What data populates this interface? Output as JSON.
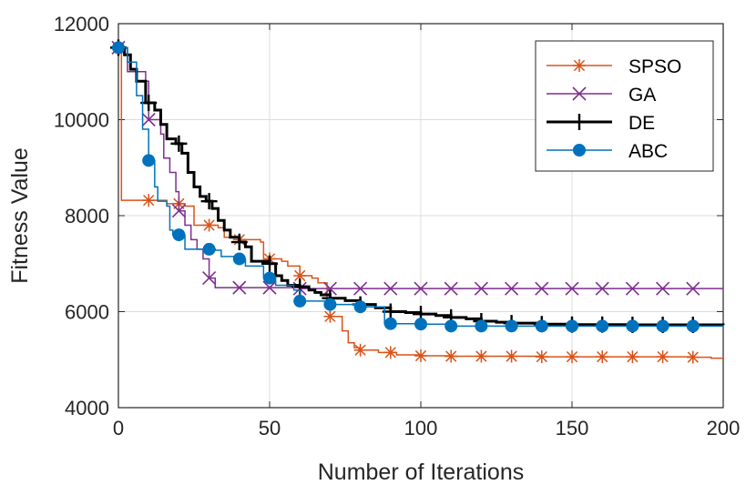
{
  "chart_data": {
    "type": "line",
    "title": "",
    "xlabel": "Number of Iterations",
    "ylabel": "Fitness Value",
    "xlim": [
      0,
      200
    ],
    "ylim": [
      4000,
      12000
    ],
    "xticks": [
      0,
      50,
      100,
      150,
      200
    ],
    "yticks": [
      4000,
      6000,
      8000,
      10000,
      12000
    ],
    "xtick_labels": [
      "0",
      "50",
      "100",
      "150",
      "200"
    ],
    "ytick_labels": [
      "4000",
      "6000",
      "8000",
      "10000",
      "12000"
    ],
    "grid": true,
    "legend_position": "top-right",
    "series": [
      {
        "name": "SPSO",
        "color": "#D95319",
        "marker": "asterisk",
        "step": true,
        "line_width": 1.5,
        "points": [
          [
            0,
            11500
          ],
          [
            1,
            8320
          ],
          [
            15,
            8320
          ],
          [
            16,
            8250
          ],
          [
            22,
            8200
          ],
          [
            25,
            7800
          ],
          [
            33,
            7750
          ],
          [
            35,
            7550
          ],
          [
            40,
            7500
          ],
          [
            47,
            7450
          ],
          [
            48,
            7100
          ],
          [
            54,
            7050
          ],
          [
            56,
            6950
          ],
          [
            60,
            6750
          ],
          [
            64,
            6700
          ],
          [
            66,
            6600
          ],
          [
            69,
            6200
          ],
          [
            70,
            5900
          ],
          [
            74,
            5600
          ],
          [
            76,
            5350
          ],
          [
            78,
            5250
          ],
          [
            80,
            5200
          ],
          [
            86,
            5150
          ],
          [
            92,
            5100
          ],
          [
            100,
            5080
          ],
          [
            110,
            5070
          ],
          [
            140,
            5060
          ],
          [
            190,
            5050
          ],
          [
            196,
            5030
          ],
          [
            200,
            5030
          ]
        ],
        "markers_x": [
          0,
          10,
          20,
          30,
          40,
          50,
          60,
          70,
          80,
          90,
          100,
          110,
          120,
          130,
          140,
          150,
          160,
          170,
          180,
          190
        ]
      },
      {
        "name": "GA",
        "color": "#7E2F8E",
        "marker": "x",
        "step": true,
        "line_width": 1.5,
        "points": [
          [
            0,
            11500
          ],
          [
            3,
            11000
          ],
          [
            9,
            10800
          ],
          [
            10,
            10000
          ],
          [
            14,
            9700
          ],
          [
            15,
            9200
          ],
          [
            17,
            8900
          ],
          [
            19,
            8500
          ],
          [
            20,
            8100
          ],
          [
            22,
            7800
          ],
          [
            24,
            7500
          ],
          [
            26,
            7300
          ],
          [
            28,
            7100
          ],
          [
            30,
            6700
          ],
          [
            32,
            6500
          ],
          [
            60,
            6480
          ],
          [
            200,
            6480
          ]
        ],
        "markers_x": [
          0,
          10,
          20,
          30,
          40,
          50,
          60,
          70,
          80,
          90,
          100,
          110,
          120,
          130,
          140,
          150,
          160,
          170,
          180,
          190
        ]
      },
      {
        "name": "DE",
        "color": "#000000",
        "marker": "plus",
        "step": true,
        "line_width": 3,
        "points": [
          [
            0,
            11500
          ],
          [
            2,
            11350
          ],
          [
            4,
            11050
          ],
          [
            6,
            10800
          ],
          [
            9,
            10350
          ],
          [
            12,
            10200
          ],
          [
            14,
            9900
          ],
          [
            16,
            9600
          ],
          [
            19,
            9500
          ],
          [
            21,
            9300
          ],
          [
            23,
            8900
          ],
          [
            25,
            8600
          ],
          [
            27,
            8400
          ],
          [
            29,
            8300
          ],
          [
            31,
            8150
          ],
          [
            33,
            7900
          ],
          [
            35,
            7700
          ],
          [
            37,
            7550
          ],
          [
            40,
            7450
          ],
          [
            42,
            7350
          ],
          [
            44,
            7050
          ],
          [
            50,
            7000
          ],
          [
            52,
            6750
          ],
          [
            54,
            6650
          ],
          [
            56,
            6550
          ],
          [
            60,
            6520
          ],
          [
            63,
            6450
          ],
          [
            65,
            6400
          ],
          [
            67,
            6350
          ],
          [
            70,
            6280
          ],
          [
            75,
            6230
          ],
          [
            80,
            6150
          ],
          [
            85,
            6080
          ],
          [
            90,
            6000
          ],
          [
            95,
            5980
          ],
          [
            100,
            5950
          ],
          [
            105,
            5920
          ],
          [
            110,
            5880
          ],
          [
            115,
            5850
          ],
          [
            120,
            5800
          ],
          [
            125,
            5780
          ],
          [
            130,
            5760
          ],
          [
            140,
            5740
          ],
          [
            150,
            5730
          ],
          [
            170,
            5725
          ],
          [
            200,
            5720
          ]
        ],
        "markers_x": [
          0,
          10,
          20,
          30,
          40,
          50,
          60,
          70,
          80,
          90,
          100,
          110,
          120,
          130,
          140,
          150,
          160,
          170,
          180,
          190
        ]
      },
      {
        "name": "ABC",
        "color": "#0072BD",
        "marker": "circle",
        "step": true,
        "line_width": 1.5,
        "points": [
          [
            0,
            11500
          ],
          [
            3,
            11200
          ],
          [
            6,
            10500
          ],
          [
            8,
            9800
          ],
          [
            10,
            9150
          ],
          [
            12,
            8600
          ],
          [
            13,
            8300
          ],
          [
            16,
            8200
          ],
          [
            17,
            7700
          ],
          [
            18,
            7600
          ],
          [
            22,
            7300
          ],
          [
            32,
            7280
          ],
          [
            34,
            7150
          ],
          [
            40,
            7100
          ],
          [
            42,
            6950
          ],
          [
            48,
            6700
          ],
          [
            52,
            6550
          ],
          [
            58,
            6450
          ],
          [
            60,
            6220
          ],
          [
            70,
            6150
          ],
          [
            80,
            6100
          ],
          [
            88,
            5750
          ],
          [
            100,
            5740
          ],
          [
            110,
            5700
          ],
          [
            200,
            5700
          ]
        ],
        "markers_x": [
          0,
          10,
          20,
          30,
          40,
          50,
          60,
          70,
          80,
          90,
          100,
          110,
          120,
          130,
          140,
          150,
          160,
          170,
          180,
          190
        ]
      }
    ]
  }
}
